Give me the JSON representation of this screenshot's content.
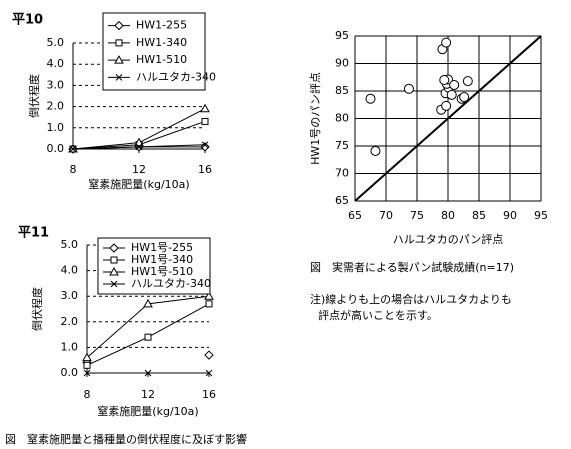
{
  "chart_data": [
    {
      "type": "line",
      "title": "平10",
      "x_label": "窒素施肥量(kg/10a)",
      "y_label": "倒伏程度",
      "x": [
        8,
        12,
        16
      ],
      "xlim": [
        8,
        16
      ],
      "xticks": [
        8,
        12,
        16
      ],
      "ylim": [
        0,
        5
      ],
      "yticks": [
        {
          "value": 0,
          "label": "0.0"
        },
        {
          "value": 1,
          "label": "1.0"
        },
        {
          "value": 2,
          "label": "2.0"
        },
        {
          "value": 3,
          "label": "3.0"
        },
        {
          "value": 4,
          "label": "4.0"
        },
        {
          "value": 5,
          "label": "5.0"
        }
      ],
      "grid": true,
      "series": [
        {
          "name": "HW1-255",
          "color": "#000000",
          "marker": "diamond",
          "values": [
            0,
            0.1,
            0.1
          ]
        },
        {
          "name": "HW1-340",
          "color": "#000000",
          "marker": "square",
          "values": [
            0,
            0.2,
            1.3
          ]
        },
        {
          "name": "HW1-510",
          "color": "#000000",
          "marker": "triangle",
          "values": [
            0,
            0.3,
            1.9
          ]
        },
        {
          "name": "ハルユタカ-340",
          "color": "#000000",
          "marker": "x",
          "values": [
            0,
            0.1,
            0.2
          ]
        }
      ]
    },
    {
      "type": "line",
      "title": "平11",
      "x_label": "窒素施肥量(kg/10a)",
      "y_label": "倒伏程度",
      "caption": "図　窒素施肥量と播種量の倒伏程度に及ぼす影響",
      "x": [
        8,
        12,
        16
      ],
      "xlim": [
        8,
        16
      ],
      "xticks": [
        8,
        12,
        16
      ],
      "ylim": [
        0,
        5
      ],
      "yticks": [
        {
          "value": 0,
          "label": "0.0"
        },
        {
          "value": 1,
          "label": "1.0"
        },
        {
          "value": 2,
          "label": "2.0"
        },
        {
          "value": 3,
          "label": "3.0"
        },
        {
          "value": 4,
          "label": "4.0"
        },
        {
          "value": 5,
          "label": "5.0"
        }
      ],
      "grid": true,
      "series": [
        {
          "name": "HW1号-255",
          "color": "#000000",
          "marker": "diamond",
          "values": [
            0.4,
            null,
            0.7
          ]
        },
        {
          "name": "HW1号-340",
          "color": "#000000",
          "marker": "square",
          "values": [
            0.3,
            1.4,
            2.7
          ]
        },
        {
          "name": "HW1号-510",
          "color": "#000000",
          "marker": "triangle",
          "values": [
            0.6,
            2.7,
            3.0
          ]
        },
        {
          "name": "ハルユタカ-340",
          "color": "#000000",
          "marker": "x",
          "values": [
            0,
            0,
            0
          ]
        }
      ]
    },
    {
      "type": "scatter",
      "x_label": "ハルユタカのパン評点",
      "y_label": "HW1号のパン評点",
      "caption": "図　実需者による製パン試験成績(n=17)",
      "note": [
        "注)線よりも上の場合はハルユタカよりも",
        "評点が高いことを示す。"
      ],
      "xlim": [
        65,
        95
      ],
      "xticks": [
        65,
        70,
        75,
        80,
        85,
        90,
        95
      ],
      "ylim": [
        65,
        95
      ],
      "yticks": [
        65,
        70,
        75,
        80,
        85,
        90,
        95
      ],
      "grid": true,
      "color": "#000000",
      "x": [
        67.5,
        68.3,
        73.7,
        79.1,
        79.7,
        78.9,
        79.7,
        79.6,
        80.1,
        79.8,
        80.0,
        81.0,
        82.2,
        83.2,
        80.6,
        82.6,
        79.4
      ],
      "values": [
        83.6,
        74.1,
        85.4,
        92.6,
        93.8,
        81.6,
        82.3,
        84.6,
        85.6,
        86.3,
        87.1,
        86.1,
        83.6,
        86.8,
        84.3,
        83.9,
        87.0
      ]
    }
  ]
}
